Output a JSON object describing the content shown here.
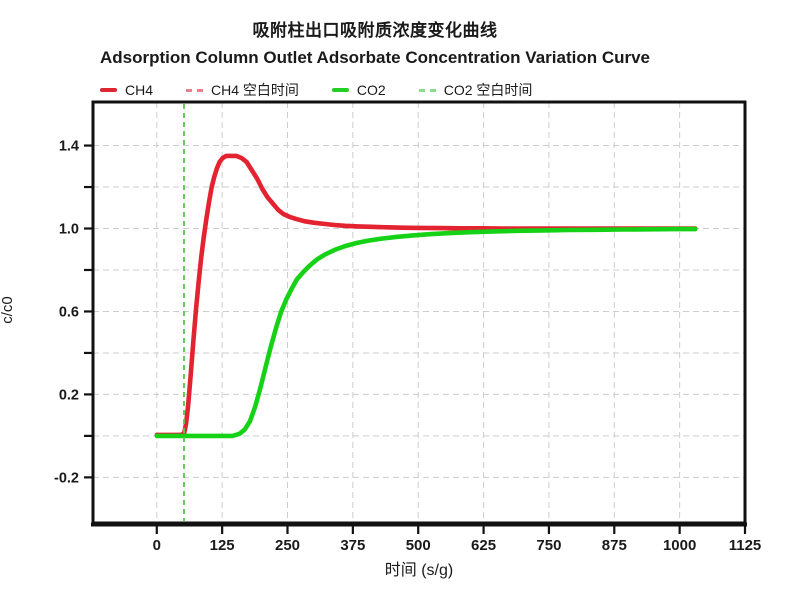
{
  "header": {
    "title_zh": "吸附柱出口吸附质浓度变化曲线",
    "title_en": "Adsorption Column Outlet Adsorbate Concentration Variation Curve"
  },
  "legend": {
    "items": [
      {
        "label": "CH4",
        "color": "#df2531",
        "dash": false
      },
      {
        "label": "CH4 空白时间",
        "color": "#e8808c",
        "dash": true
      },
      {
        "label": "CO2",
        "color": "#22cf22",
        "dash": false
      },
      {
        "label": "CO2 空白时间",
        "color": "#8ade8a",
        "dash": true
      }
    ]
  },
  "colors": {
    "ch4": "#e32330",
    "ch4_blank": "#e8808c",
    "co2": "#16d216",
    "co2_blank": "#4cd24c",
    "grid": "#cdcdcd",
    "axis": "#111111",
    "text": "#1a1a1a"
  },
  "chart_data": {
    "type": "line",
    "title": "吸附柱出口吸附质浓度变化曲线",
    "subtitle": "Adsorption Column Outlet Adsorbate Concentration Variation Curve",
    "xlabel": "时间  (s/g)",
    "ylabel": "c/c0",
    "xlim": [
      -122,
      1125
    ],
    "ylim": [
      -0.42,
      1.61
    ],
    "grid": "dashed, both axes",
    "legend_position": "top-left above plot",
    "x_ticks": [
      0,
      125,
      250,
      375,
      500,
      625,
      750,
      875,
      1000,
      1125
    ],
    "y_ticks": [
      {
        "value": 1.4,
        "label": "1.4"
      },
      {
        "value": 1.2,
        "label": ""
      },
      {
        "value": 1.0,
        "label": "1.0"
      },
      {
        "value": 0.8,
        "label": ""
      },
      {
        "value": 0.6,
        "label": "0.6"
      },
      {
        "value": 0.4,
        "label": ""
      },
      {
        "value": 0.2,
        "label": "0.2"
      },
      {
        "value": 0.0,
        "label": ""
      },
      {
        "value": -0.2,
        "label": "-0.2"
      }
    ],
    "blank_time_s_per_g": 52,
    "series": [
      {
        "name": "CH4",
        "type": "curve",
        "style": "solid",
        "points": [
          [
            0,
            0.005
          ],
          [
            30,
            0.005
          ],
          [
            45,
            0.005
          ],
          [
            52,
            0.01
          ],
          [
            56,
            0.06
          ],
          [
            60,
            0.15
          ],
          [
            65,
            0.3
          ],
          [
            70,
            0.46
          ],
          [
            75,
            0.61
          ],
          [
            80,
            0.74
          ],
          [
            85,
            0.86
          ],
          [
            90,
            0.96
          ],
          [
            95,
            1.05
          ],
          [
            100,
            1.13
          ],
          [
            105,
            1.2
          ],
          [
            110,
            1.25
          ],
          [
            115,
            1.29
          ],
          [
            120,
            1.32
          ],
          [
            126,
            1.34
          ],
          [
            133,
            1.35
          ],
          [
            142,
            1.35
          ],
          [
            152,
            1.35
          ],
          [
            162,
            1.34
          ],
          [
            172,
            1.32
          ],
          [
            182,
            1.28
          ],
          [
            192,
            1.24
          ],
          [
            202,
            1.19
          ],
          [
            212,
            1.15
          ],
          [
            222,
            1.12
          ],
          [
            232,
            1.09
          ],
          [
            242,
            1.07
          ],
          [
            255,
            1.055
          ],
          [
            268,
            1.045
          ],
          [
            282,
            1.035
          ],
          [
            300,
            1.028
          ],
          [
            320,
            1.022
          ],
          [
            340,
            1.017
          ],
          [
            360,
            1.013
          ],
          [
            385,
            1.01
          ],
          [
            410,
            1.008
          ],
          [
            440,
            1.006
          ],
          [
            470,
            1.004
          ],
          [
            500,
            1.003
          ],
          [
            540,
            1.002
          ],
          [
            580,
            1.001
          ],
          [
            620,
            1.001
          ],
          [
            660,
            1.0
          ],
          [
            700,
            1.0
          ],
          [
            740,
            1.0
          ],
          [
            780,
            1.0
          ],
          [
            820,
            1.0
          ],
          [
            860,
            1.0
          ],
          [
            900,
            1.0
          ],
          [
            940,
            1.0
          ],
          [
            980,
            1.0
          ],
          [
            1010,
            1.0
          ],
          [
            1030,
            1.0
          ]
        ]
      },
      {
        "name": "CH4 空白时间",
        "type": "vline",
        "style": "dashed",
        "x": 52
      },
      {
        "name": "CO2",
        "type": "curve",
        "style": "solid",
        "points": [
          [
            0,
            0.0
          ],
          [
            40,
            0.0
          ],
          [
            80,
            0.0
          ],
          [
            120,
            0.0
          ],
          [
            145,
            0.0
          ],
          [
            158,
            0.01
          ],
          [
            168,
            0.03
          ],
          [
            178,
            0.07
          ],
          [
            188,
            0.14
          ],
          [
            198,
            0.23
          ],
          [
            208,
            0.33
          ],
          [
            218,
            0.43
          ],
          [
            228,
            0.52
          ],
          [
            238,
            0.6
          ],
          [
            248,
            0.66
          ],
          [
            258,
            0.71
          ],
          [
            268,
            0.755
          ],
          [
            280,
            0.79
          ],
          [
            292,
            0.82
          ],
          [
            306,
            0.85
          ],
          [
            322,
            0.875
          ],
          [
            340,
            0.897
          ],
          [
            360,
            0.915
          ],
          [
            382,
            0.93
          ],
          [
            406,
            0.942
          ],
          [
            432,
            0.952
          ],
          [
            460,
            0.96
          ],
          [
            490,
            0.967
          ],
          [
            525,
            0.973
          ],
          [
            560,
            0.978
          ],
          [
            600,
            0.982
          ],
          [
            645,
            0.986
          ],
          [
            690,
            0.989
          ],
          [
            740,
            0.991
          ],
          [
            790,
            0.993
          ],
          [
            840,
            0.994
          ],
          [
            890,
            0.995
          ],
          [
            940,
            0.996
          ],
          [
            990,
            0.997
          ],
          [
            1030,
            0.997
          ]
        ]
      },
      {
        "name": "CO2 空白时间",
        "type": "vline",
        "style": "dashed",
        "x": 52
      }
    ]
  }
}
